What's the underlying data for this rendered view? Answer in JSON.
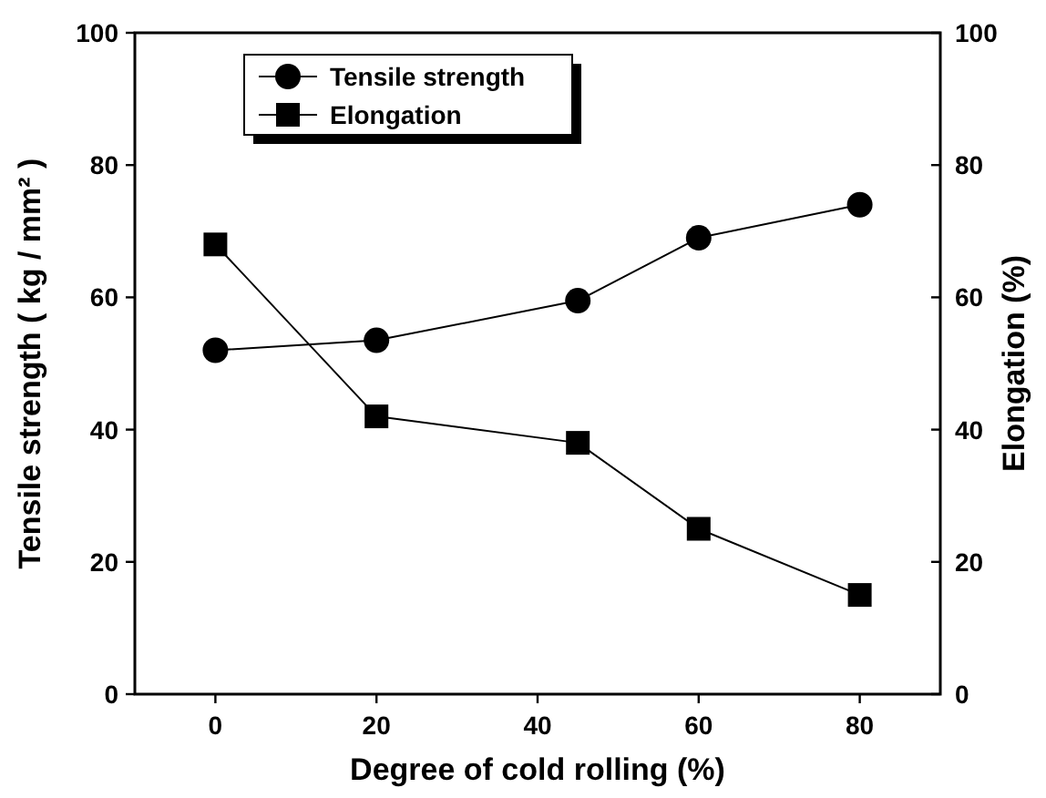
{
  "chart_data": {
    "type": "line",
    "xlabel": "Degree of cold rolling (%)",
    "ylabel": "Tensile strength ( kg / mm² )",
    "y2label": "Elongation (%)",
    "x": [
      0,
      20,
      45,
      60,
      80
    ],
    "xlim": [
      -10,
      90
    ],
    "xticks": [
      0,
      20,
      40,
      60,
      80
    ],
    "ylim": [
      0,
      100
    ],
    "yticks": [
      0,
      20,
      40,
      60,
      80,
      100
    ],
    "y2lim": [
      0,
      100
    ],
    "y2ticks": [
      0,
      20,
      40,
      60,
      80,
      100
    ],
    "series": [
      {
        "name": "Tensile strength",
        "color": "#000000",
        "marker": "circle",
        "values": [
          52,
          53.5,
          59.5,
          69,
          74
        ]
      },
      {
        "name": "Elongation",
        "color": "#000000",
        "marker": "square",
        "axis": "y2",
        "values": [
          68,
          42,
          38,
          25,
          15
        ]
      }
    ],
    "legend": "top left",
    "grid": false,
    "line_style": "solid"
  }
}
